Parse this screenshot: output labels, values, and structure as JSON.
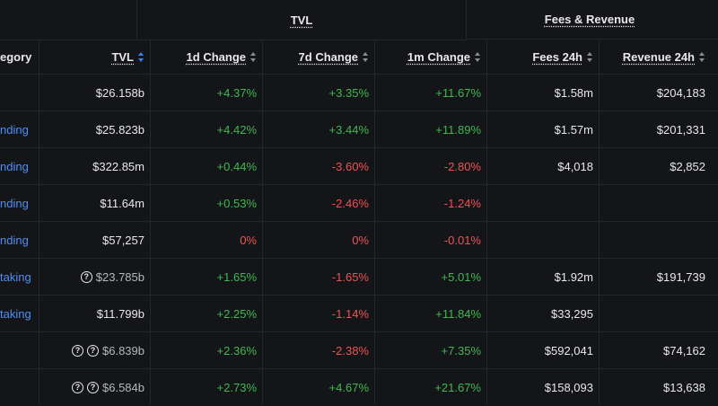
{
  "group_headers": {
    "tvl": "TVL",
    "fees_revenue": "Fees & Revenue"
  },
  "columns": {
    "category": "egory",
    "tvl": "TVL",
    "change_1d": "1d Change",
    "change_7d": "7d Change",
    "change_1m": "1m Change",
    "fees_24h": "Fees 24h",
    "revenue_24h": "Revenue 24h"
  },
  "sort": {
    "active_column": "tvl"
  },
  "rows": [
    {
      "category": "",
      "help_icons": 0,
      "tvl": "$26.158b",
      "change_1d": "+4.37%",
      "change_7d": "+3.35%",
      "change_1m": "+11.67%",
      "fees_24h": "$1.58m",
      "revenue_24h": "$204,183",
      "tvl_muted": false
    },
    {
      "category": "nding",
      "help_icons": 0,
      "tvl": "$25.823b",
      "change_1d": "+4.42%",
      "change_7d": "+3.44%",
      "change_1m": "+11.89%",
      "fees_24h": "$1.57m",
      "revenue_24h": "$201,331",
      "tvl_muted": false
    },
    {
      "category": "nding",
      "help_icons": 0,
      "tvl": "$322.85m",
      "change_1d": "+0.44%",
      "change_7d": "-3.60%",
      "change_1m": "-2.80%",
      "fees_24h": "$4,018",
      "revenue_24h": "$2,852",
      "tvl_muted": false
    },
    {
      "category": "nding",
      "help_icons": 0,
      "tvl": "$11.64m",
      "change_1d": "+0.53%",
      "change_7d": "-2.46%",
      "change_1m": "-1.24%",
      "fees_24h": "",
      "revenue_24h": "",
      "tvl_muted": false
    },
    {
      "category": "nding",
      "help_icons": 0,
      "tvl": "$57,257",
      "change_1d": "0%",
      "change_7d": "0%",
      "change_1m": "-0.01%",
      "fees_24h": "",
      "revenue_24h": "",
      "tvl_muted": false
    },
    {
      "category": "taking",
      "help_icons": 1,
      "tvl": "$23.785b",
      "change_1d": "+1.65%",
      "change_7d": "-1.65%",
      "change_1m": "+5.01%",
      "fees_24h": "$1.92m",
      "revenue_24h": "$191,739",
      "tvl_muted": true
    },
    {
      "category": "taking",
      "help_icons": 0,
      "tvl": "$11.799b",
      "change_1d": "+2.25%",
      "change_7d": "-1.14%",
      "change_1m": "+11.84%",
      "fees_24h": "$33,295",
      "revenue_24h": "",
      "tvl_muted": false
    },
    {
      "category": "",
      "help_icons": 2,
      "tvl": "$6.839b",
      "change_1d": "+2.36%",
      "change_7d": "-2.38%",
      "change_1m": "+7.35%",
      "fees_24h": "$592,041",
      "revenue_24h": "$74,162",
      "tvl_muted": true
    },
    {
      "category": "",
      "help_icons": 2,
      "tvl": "$6.584b",
      "change_1d": "+2.73%",
      "change_7d": "+4.67%",
      "change_1m": "+21.67%",
      "fees_24h": "$158,093",
      "revenue_24h": "$13,638",
      "tvl_muted": true
    }
  ],
  "help_icon_glyph": "?",
  "colors": {
    "background": "#141518",
    "positive": "#3fb950",
    "negative": "#f05252",
    "link": "#4f8ef7",
    "sort_active": "#3b82f6"
  }
}
